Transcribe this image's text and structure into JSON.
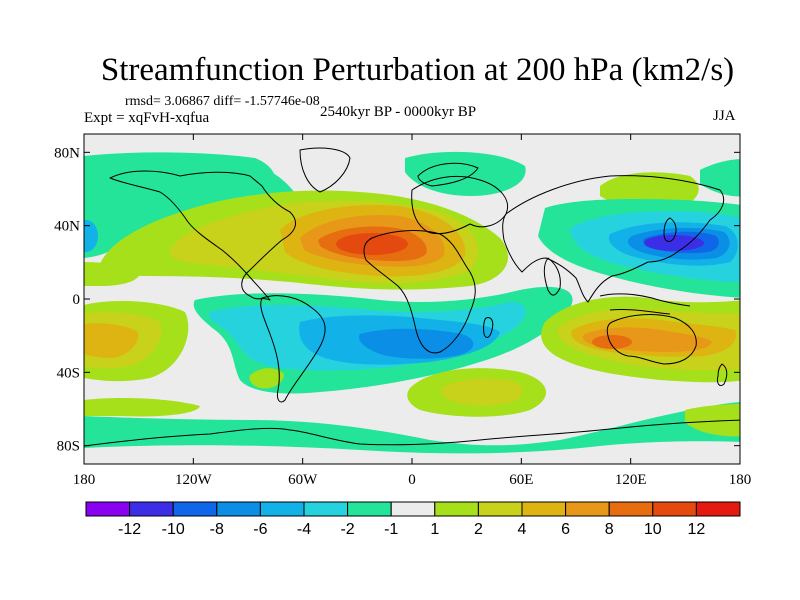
{
  "title": "Streamfunction Perturbation at 200 hPa (km2/s)",
  "rmsd_line": "rmsd= 3.06867 diff= -1.57746e-08",
  "expt_line": "Expt = xqFvH-xqfua",
  "period": "2540kyr BP - 0000kyr BP",
  "season": "JJA",
  "map": {
    "lon_range": [
      -180,
      180
    ],
    "lat_range": [
      -90,
      90
    ],
    "lat_ticks": [
      {
        "label": "80N",
        "value": 80
      },
      {
        "label": "40N",
        "value": 40
      },
      {
        "label": "0",
        "value": 0
      },
      {
        "label": "40S",
        "value": -40
      },
      {
        "label": "80S",
        "value": -80
      }
    ],
    "lon_ticks": [
      {
        "label": "180",
        "value": -180
      },
      {
        "label": "120W",
        "value": -120
      },
      {
        "label": "60W",
        "value": -60
      },
      {
        "label": "0",
        "value": 0
      },
      {
        "label": "60E",
        "value": 60
      },
      {
        "label": "120E",
        "value": 120
      },
      {
        "label": "180",
        "value": 180
      }
    ],
    "field_features": [
      {
        "name": "anticyclone-north-africa",
        "lon": -20,
        "lat": 30,
        "peak": 11
      },
      {
        "name": "low-west-pacific",
        "lon": 150,
        "lat": 27,
        "peak": -11
      },
      {
        "name": "high-australia",
        "lon": 110,
        "lat": -25,
        "peak": 8
      },
      {
        "name": "low-south-atlantic",
        "lon": 0,
        "lat": -25,
        "peak": -8
      },
      {
        "name": "high-south-pacific",
        "lon": -170,
        "lat": -25,
        "peak": 5
      },
      {
        "name": "high-south-indian",
        "lon": 45,
        "lat": -48,
        "peak": 4
      }
    ]
  },
  "colorbar": {
    "colors": [
      "#8a00f0",
      "#3c2ee6",
      "#1066e8",
      "#0a8ee6",
      "#12b2e8",
      "#27d2df",
      "#24e49a",
      "#ececec",
      "#a5e01a",
      "#c8d21a",
      "#deb412",
      "#e89818",
      "#e76e10",
      "#e44a10",
      "#e41a10"
    ],
    "labels": [
      "-12",
      "-10",
      "-8",
      "-6",
      "-4",
      "-2",
      "-1",
      "1",
      "2",
      "4",
      "6",
      "8",
      "10",
      "12"
    ]
  }
}
